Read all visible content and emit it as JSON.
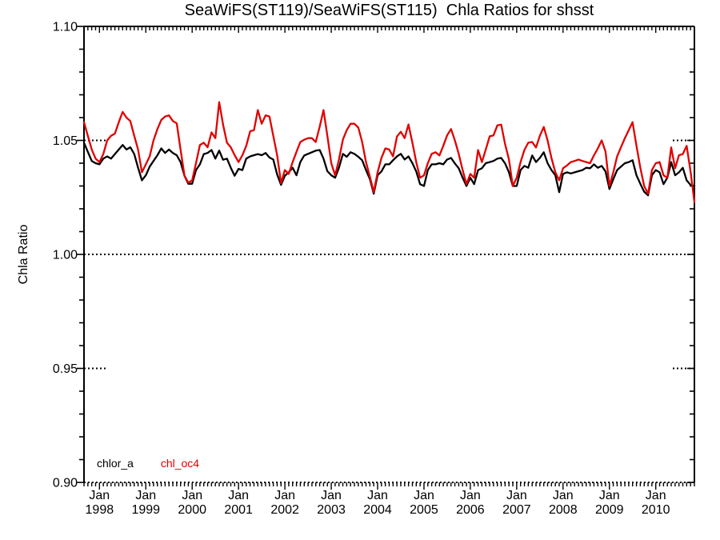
{
  "title": "SeaWiFS(ST119)/SeaWiFS(ST115)  Chla Ratios for shsst",
  "chart_data": {
    "type": "line",
    "x_start": "1997-09",
    "x_interval": "monthly",
    "x_axis": {
      "tick_month_label": "Jan",
      "tick_years": [
        "1998",
        "1999",
        "2000",
        "2001",
        "2002",
        "2003",
        "2004",
        "2005",
        "2006",
        "2007",
        "2008",
        "2009",
        "2010"
      ]
    },
    "y_axis": {
      "label": "Chla Ratio",
      "range": [
        0.9,
        1.1
      ],
      "major_tick_labels": [
        "0.90",
        "0.95",
        "1.00",
        "1.05",
        "1.10"
      ],
      "major_tick_values": [
        0.9,
        0.95,
        1.0,
        1.05,
        1.1
      ],
      "minor_tick_step": 0.01
    },
    "reference_lines": [
      {
        "value": 1.0,
        "style": "dotted",
        "extent": "full"
      },
      {
        "value": 1.05,
        "style": "dotted",
        "extent": "stubs"
      },
      {
        "value": 0.95,
        "style": "dotted",
        "extent": "stubs"
      }
    ],
    "legend": {
      "position": "bottom-left-inside",
      "entries": [
        {
          "label": "chlor_a",
          "color": "#000000"
        },
        {
          "label": "chl_oc4",
          "color": "#e00000"
        }
      ]
    },
    "series": [
      {
        "name": "chlor_a",
        "color": "#000000",
        "values": [
          1.049,
          1.045,
          1.041,
          1.04,
          1.0395,
          1.042,
          1.043,
          1.042,
          1.044,
          1.046,
          1.048,
          1.046,
          1.047,
          1.044,
          1.038,
          1.0325,
          1.0347,
          1.0385,
          1.041,
          1.0435,
          1.0465,
          1.0445,
          1.046,
          1.0445,
          1.0435,
          1.0405,
          1.0345,
          1.031,
          1.031,
          1.037,
          1.0395,
          1.044,
          1.0445,
          1.0458,
          1.042,
          1.0455,
          1.0415,
          1.042,
          1.038,
          1.0345,
          1.0375,
          1.037,
          1.042,
          1.043,
          1.0435,
          1.044,
          1.0435,
          1.0445,
          1.0425,
          1.0416,
          1.035,
          1.0305,
          1.0345,
          1.036,
          1.038,
          1.0347,
          1.0405,
          1.0434,
          1.0441,
          1.0448,
          1.0455,
          1.0458,
          1.042,
          1.0365,
          1.0347,
          1.0336,
          1.038,
          1.0441,
          1.0428,
          1.0448,
          1.0441,
          1.0428,
          1.0413,
          1.037,
          1.033,
          1.0266,
          1.0347,
          1.0364,
          1.0395,
          1.0395,
          1.0413,
          1.043,
          1.0441,
          1.0416,
          1.043,
          1.04,
          1.0364,
          1.0308,
          1.03,
          1.037,
          1.0395,
          1.0395,
          1.04,
          1.0395,
          1.0416,
          1.0423,
          1.0399,
          1.0378,
          1.0336,
          1.03,
          1.0336,
          1.0308,
          1.037,
          1.0378,
          1.04,
          1.0405,
          1.041,
          1.042,
          1.0423,
          1.0399,
          1.036,
          1.03,
          1.03,
          1.037,
          1.0388,
          1.038,
          1.0434,
          1.0405,
          1.0423,
          1.0448,
          1.04,
          1.037,
          1.0347,
          1.0273,
          1.0353,
          1.036,
          1.0355,
          1.036,
          1.0365,
          1.037,
          1.038,
          1.0378,
          1.0395,
          1.038,
          1.0388,
          1.0364,
          1.0287,
          1.033,
          1.037,
          1.0385,
          1.04,
          1.0405,
          1.0413,
          1.0347,
          1.031,
          1.0275,
          1.0259,
          1.0347,
          1.037,
          1.036,
          1.0308,
          1.0336,
          1.0405,
          1.0347,
          1.036,
          1.038,
          1.0325,
          1.0305,
          1.03
        ]
      },
      {
        "name": "chl_oc4",
        "color": "#e00000",
        "values": [
          1.058,
          1.052,
          1.046,
          1.042,
          1.0405,
          1.044,
          1.05,
          1.052,
          1.053,
          1.058,
          1.0625,
          1.06,
          1.0585,
          1.052,
          1.046,
          1.036,
          1.0395,
          1.043,
          1.05,
          1.055,
          1.059,
          1.0605,
          1.061,
          1.0585,
          1.0575,
          1.046,
          1.0345,
          1.0315,
          1.0325,
          1.04,
          1.048,
          1.049,
          1.047,
          1.0535,
          1.051,
          1.0668,
          1.057,
          1.049,
          1.047,
          1.0435,
          1.0405,
          1.0435,
          1.0476,
          1.054,
          1.0545,
          1.0633,
          1.0573,
          1.061,
          1.0605,
          1.052,
          1.0434,
          1.0312,
          1.037,
          1.0353,
          1.0405,
          1.045,
          1.0493,
          1.0503,
          1.051,
          1.051,
          1.0493,
          1.056,
          1.0633,
          1.052,
          1.04,
          1.0347,
          1.0416,
          1.0503,
          1.0545,
          1.0573,
          1.0573,
          1.0556,
          1.0493,
          1.0405,
          1.034,
          1.0273,
          1.036,
          1.0423,
          1.0465,
          1.046,
          1.043,
          1.0517,
          1.0538,
          1.051,
          1.057,
          1.049,
          1.0405,
          1.0336,
          1.0347,
          1.04,
          1.0441,
          1.0448,
          1.0434,
          1.0476,
          1.0522,
          1.055,
          1.05,
          1.0441,
          1.037,
          1.0308,
          1.0353,
          1.0336,
          1.0458,
          1.0405,
          1.046,
          1.0518,
          1.0522,
          1.0566,
          1.0569,
          1.0483,
          1.0416,
          1.03,
          1.0336,
          1.0405,
          1.0458,
          1.049,
          1.0493,
          1.0469,
          1.052,
          1.0559,
          1.05,
          1.0423,
          1.036,
          1.0325,
          1.0378,
          1.039,
          1.0405,
          1.041,
          1.0416,
          1.041,
          1.0405,
          1.04,
          1.0434,
          1.0465,
          1.05,
          1.0451,
          1.03,
          1.036,
          1.043,
          1.047,
          1.051,
          1.0545,
          1.058,
          1.0476,
          1.038,
          1.03,
          1.0266,
          1.037,
          1.04,
          1.0405,
          1.0347,
          1.0336,
          1.0469,
          1.0378,
          1.0435,
          1.044,
          1.0476,
          1.0364,
          1.023
        ]
      }
    ]
  }
}
